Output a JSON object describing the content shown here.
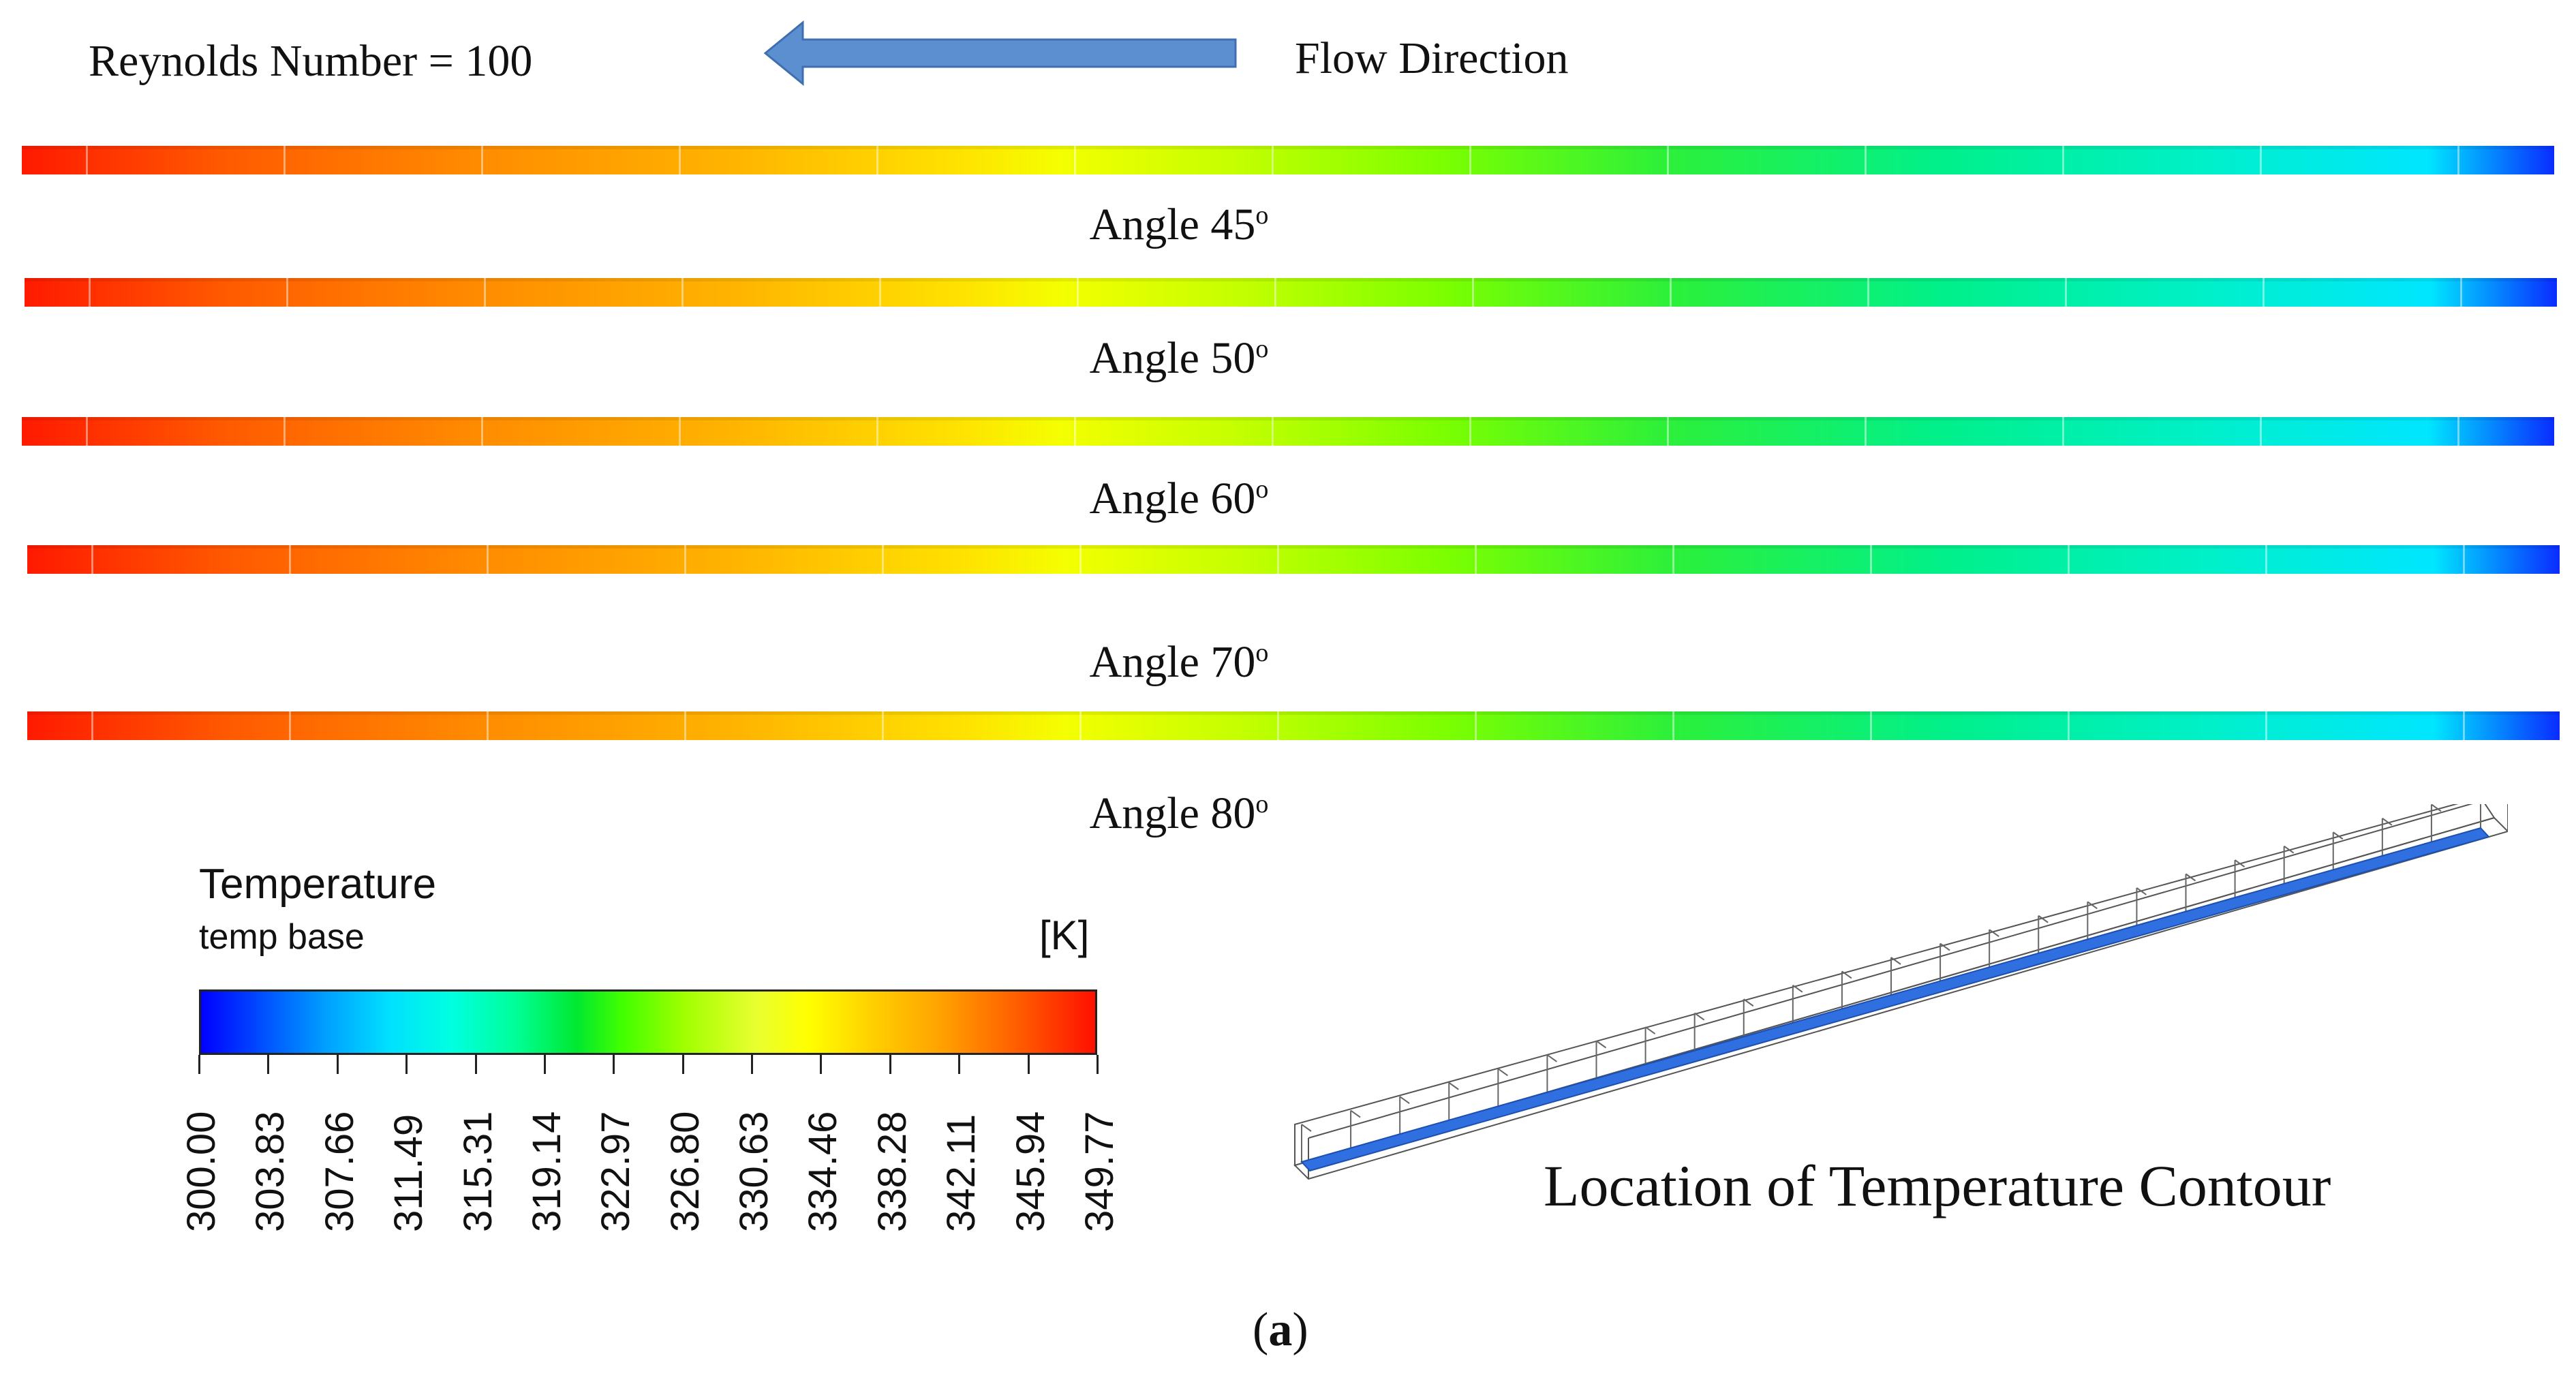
{
  "header": {
    "reynolds_label": "Reynolds Number = 100",
    "flow_direction_label": "Flow Direction"
  },
  "contours": [
    {
      "label_text": "Angle 45",
      "degree_symbol": "o"
    },
    {
      "label_text": "Angle 50",
      "degree_symbol": "o"
    },
    {
      "label_text": "Angle 60",
      "degree_symbol": "o"
    },
    {
      "label_text": "Angle 70",
      "degree_symbol": "o"
    },
    {
      "label_text": "Angle 80",
      "degree_symbol": "o"
    }
  ],
  "legend": {
    "title": "Temperature",
    "subtitle": "temp base",
    "unit": "[K]",
    "ticks": [
      "300.00",
      "303.83",
      "307.66",
      "311.49",
      "315.31",
      "319.14",
      "322.97",
      "326.80",
      "330.63",
      "334.46",
      "338.28",
      "342.11",
      "345.94",
      "349.77"
    ]
  },
  "location_label": "Location of Temperature Contour",
  "caption": {
    "open": "(",
    "letter": "a",
    "close": ")"
  },
  "colors": {
    "arrow": "#5b8fd0",
    "arrow_stroke": "#3f6fb0",
    "channel": "#2f6fe0"
  }
}
